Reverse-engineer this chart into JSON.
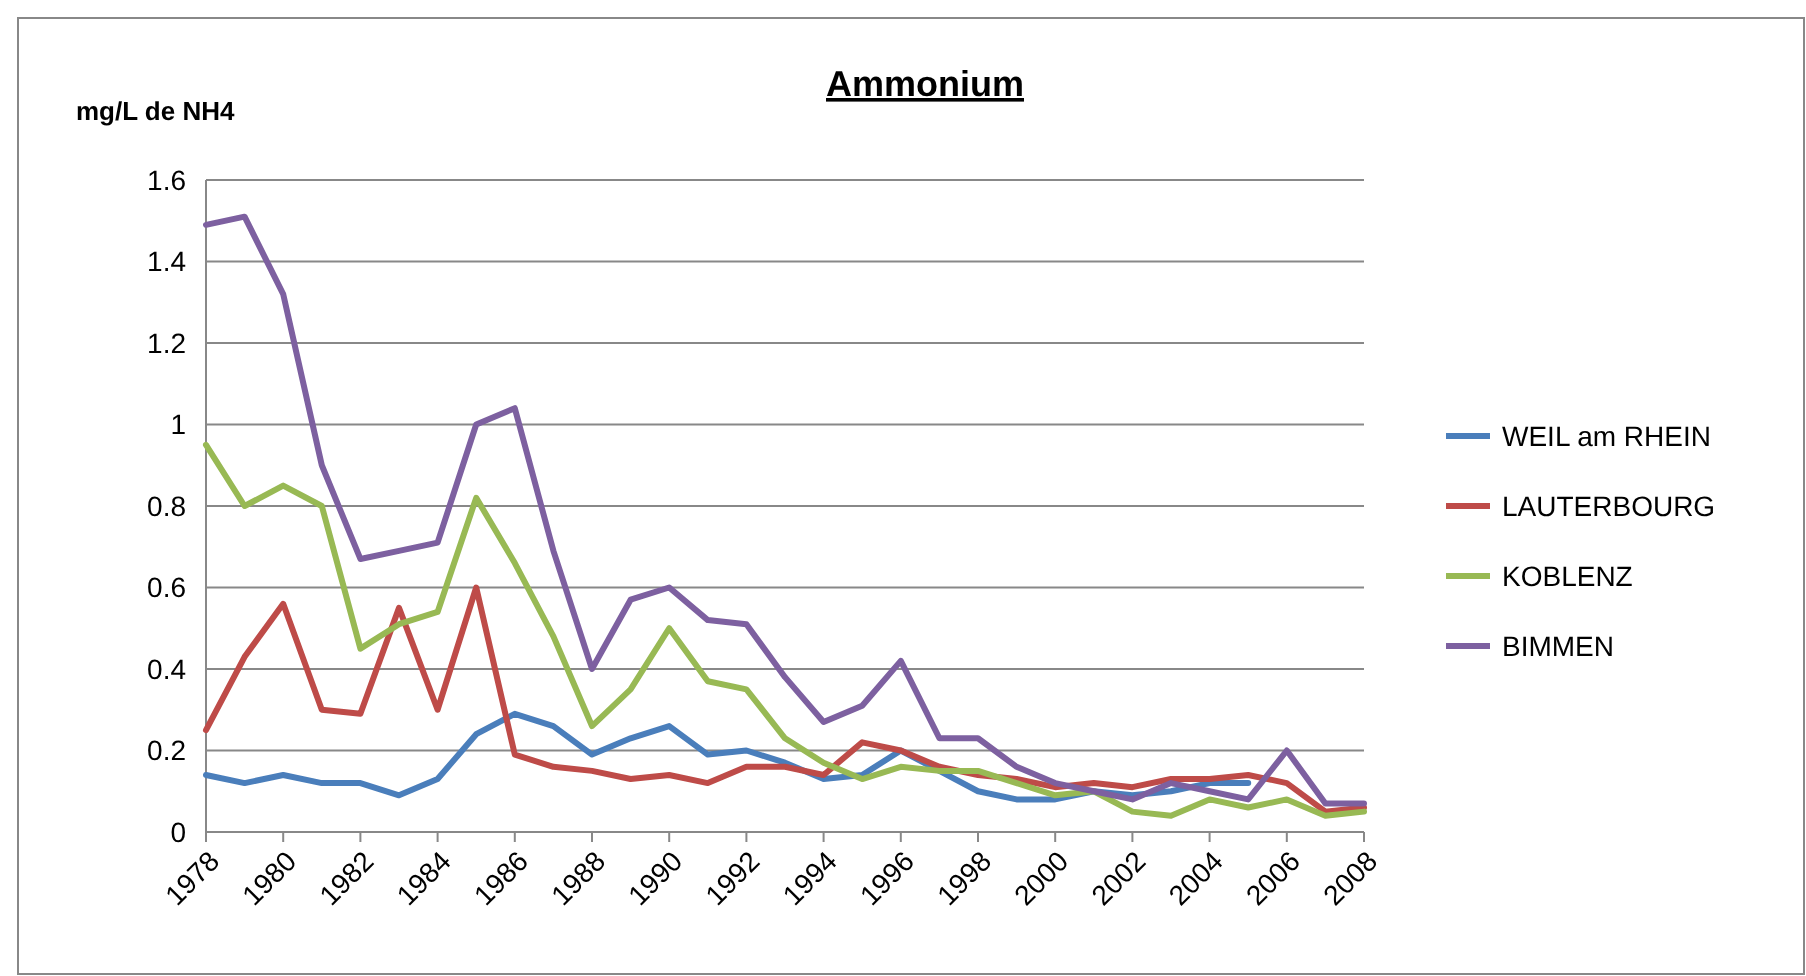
{
  "chart_data": {
    "type": "line",
    "title": "Ammonium",
    "ylabel": "mg/L de NH4",
    "x": [
      1978,
      1979,
      1980,
      1981,
      1982,
      1983,
      1984,
      1985,
      1986,
      1987,
      1988,
      1989,
      1990,
      1991,
      1992,
      1993,
      1994,
      1995,
      1996,
      1997,
      1998,
      1999,
      2000,
      2001,
      2002,
      2003,
      2004,
      2005,
      2006,
      2007,
      2008
    ],
    "series": [
      {
        "name": "WEIL am RHEIN",
        "color": "#4a7ebb",
        "values": [
          0.14,
          0.12,
          0.14,
          0.12,
          0.12,
          0.09,
          0.13,
          0.24,
          0.29,
          0.26,
          0.19,
          0.23,
          0.26,
          0.19,
          0.2,
          0.17,
          0.13,
          0.14,
          0.2,
          0.15,
          0.1,
          0.08,
          0.08,
          0.1,
          0.09,
          0.1,
          0.12,
          0.12,
          null,
          null,
          null
        ]
      },
      {
        "name": "LAUTERBOURG",
        "color": "#be4b48",
        "values": [
          0.25,
          0.43,
          0.56,
          0.3,
          0.29,
          0.55,
          0.3,
          0.6,
          0.19,
          0.16,
          0.15,
          0.13,
          0.14,
          0.12,
          0.16,
          0.16,
          0.14,
          0.22,
          0.2,
          0.16,
          0.14,
          0.13,
          0.11,
          0.12,
          0.11,
          0.13,
          0.13,
          0.14,
          0.12,
          0.05,
          0.06
        ]
      },
      {
        "name": "KOBLENZ",
        "color": "#98b954",
        "values": [
          0.95,
          0.8,
          0.85,
          0.8,
          0.45,
          0.51,
          0.54,
          0.82,
          0.66,
          0.48,
          0.26,
          0.35,
          0.5,
          0.37,
          0.35,
          0.23,
          0.17,
          0.13,
          0.16,
          0.15,
          0.15,
          0.12,
          0.09,
          0.1,
          0.05,
          0.04,
          0.08,
          0.06,
          0.08,
          0.04,
          0.05
        ]
      },
      {
        "name": "BIMMEN",
        "color": "#7d60a0",
        "values": [
          1.49,
          1.51,
          1.32,
          0.9,
          0.67,
          0.69,
          0.71,
          1.0,
          1.04,
          0.69,
          0.4,
          0.57,
          0.6,
          0.52,
          0.51,
          0.38,
          0.27,
          0.31,
          0.42,
          0.23,
          0.23,
          0.16,
          0.12,
          0.1,
          0.08,
          0.12,
          0.1,
          0.08,
          0.2,
          0.07,
          0.07
        ]
      }
    ],
    "xlim": [
      1978,
      2008
    ],
    "xticks": [
      1978,
      1980,
      1982,
      1984,
      1986,
      1988,
      1990,
      1992,
      1994,
      1996,
      1998,
      2000,
      2002,
      2004,
      2006,
      2008
    ],
    "ylim": [
      0,
      1.6
    ],
    "yticks": [
      0,
      0.2,
      0.4,
      0.6,
      0.8,
      1,
      1.2,
      1.4,
      1.6
    ],
    "grid": "y",
    "legend": "right",
    "marker": "none",
    "line_style": "solid"
  }
}
